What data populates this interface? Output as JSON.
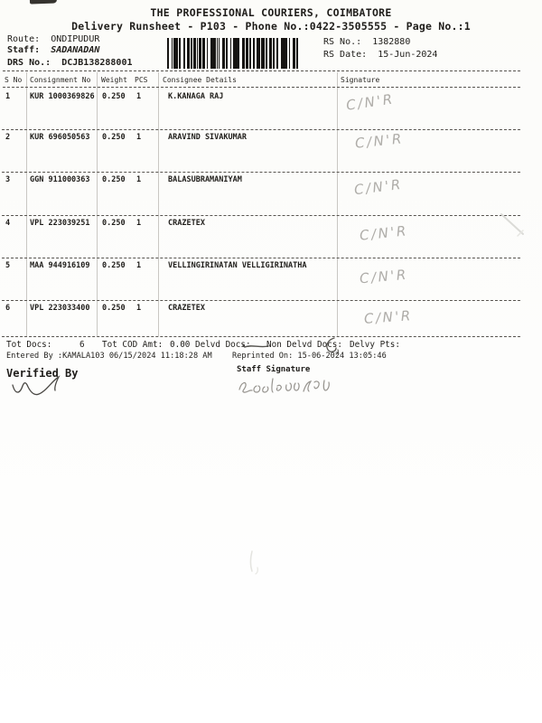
{
  "document": {
    "title": "THE PROFESSIONAL COURIERS, COIMBATORE",
    "subtitle": "Delivery Runsheet - P103 - Phone No.:0422-3505555 - Page No.:1"
  },
  "meta": {
    "route_label": "Route:",
    "route_value": "ONDIPUDUR",
    "staff_label": "Staff:",
    "staff_value": "SADANADAN",
    "drs_label": "DRS No.:",
    "drs_value": "DCJB138288001",
    "rs_no_label": "RS No.:",
    "rs_no_value": "1382880",
    "rs_date_label": "RS Date:",
    "rs_date_value": "15-Jun-2024"
  },
  "table": {
    "columns": [
      "S No",
      "Consignment No",
      "Weight",
      "PCS",
      "Consignee Details",
      "Signature"
    ],
    "rows": [
      {
        "s_no": "1",
        "consignment_no": "KUR 1000369826",
        "weight": "0.250",
        "pcs": "1",
        "consignee": "K.KANAGA RAJ",
        "signature_mark": "C/N'R"
      },
      {
        "s_no": "2",
        "consignment_no": "KUR 696050563",
        "weight": "0.250",
        "pcs": "1",
        "consignee": "ARAVIND SIVAKUMAR",
        "signature_mark": "C/N'R"
      },
      {
        "s_no": "3",
        "consignment_no": "GGN 911000363",
        "weight": "0.250",
        "pcs": "1",
        "consignee": "BALASUBRAMANIYAM",
        "signature_mark": "C/N'R"
      },
      {
        "s_no": "4",
        "consignment_no": "VPL 223039251",
        "weight": "0.250",
        "pcs": "1",
        "consignee": "CRAZETEX",
        "signature_mark": "C/N'R"
      },
      {
        "s_no": "5",
        "consignment_no": "MAA 944916109",
        "weight": "0.250",
        "pcs": "1",
        "consignee": "VELLINGIRINATAN VELLIGIRINATHA",
        "signature_mark": "C/N'R"
      },
      {
        "s_no": "6",
        "consignment_no": "VPL 223033400",
        "weight": "0.250",
        "pcs": "1",
        "consignee": "CRAZETEX",
        "signature_mark": "C/N'R"
      }
    ]
  },
  "summary": {
    "tot_docs_label": "Tot Docs:",
    "tot_docs_value": "6",
    "tot_cod_label": "Tot COD Amt:",
    "tot_cod_value": "0.00",
    "delvd_docs_label": "Delvd Docs:",
    "non_delvd_docs_label": "Non Delvd Docs:",
    "delvy_pts_label": "Delvy Pts:",
    "entered_by": "Entered By :KAMALA103 06/15/2024 11:18:28 AM",
    "reprinted_on": "Reprinted On: 15-06-2024 13:05:46"
  },
  "footer": {
    "verified_by_label": "Verified By",
    "staff_signature_label": "Staff Signature"
  },
  "colors": {
    "ink": "#1f1d1a",
    "handwriting_light": "#aeaca8",
    "handwriting_dark": "#55534f"
  }
}
